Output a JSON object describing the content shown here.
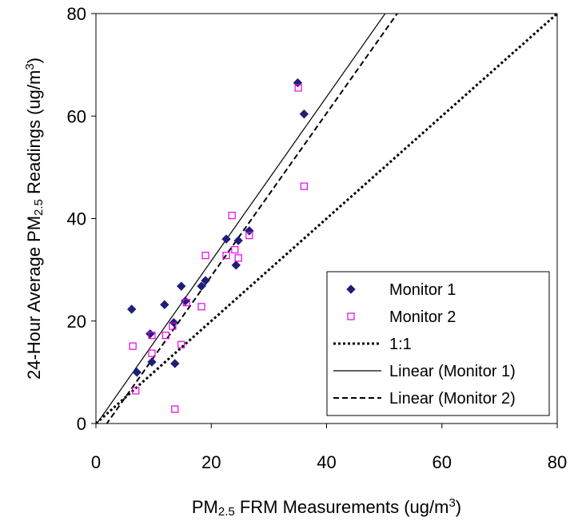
{
  "chart_data": {
    "type": "scatter",
    "x_label": [
      {
        "text": "PM"
      },
      {
        "text": "2.5",
        "sub": true
      },
      {
        "text": " FRM Measurements (ug/m"
      },
      {
        "text": "3",
        "sup": true
      },
      {
        "text": ")"
      }
    ],
    "y_label": [
      {
        "text": "24-Hour Average PM"
      },
      {
        "text": "2.5",
        "sub": true
      },
      {
        "text": " Readings (ug/m"
      },
      {
        "text": "3",
        "sup": true
      },
      {
        "text": ")"
      }
    ],
    "xlim": [
      0,
      80
    ],
    "xticks": [
      0,
      20,
      40,
      60,
      80
    ],
    "ylim": [
      0,
      80
    ],
    "yticks": [
      0,
      20,
      40,
      60,
      80
    ],
    "grid": false,
    "legend": "lower right",
    "series": [
      {
        "name": "Monitor 1",
        "marker": "diamond",
        "color": "#1f1f7a",
        "x": [
          6.2,
          7.1,
          9.4,
          9.7,
          11.9,
          13.5,
          13.7,
          14.8,
          15.5,
          18.3,
          19.0,
          22.6,
          24.3,
          24.7,
          26.6,
          35.0,
          36.1
        ],
        "values": [
          22.3,
          10.0,
          17.5,
          12.0,
          23.2,
          19.7,
          11.7,
          26.8,
          23.9,
          26.8,
          27.9,
          36.0,
          30.9,
          35.7,
          37.6,
          66.5,
          60.4
        ]
      },
      {
        "name": "Monitor 2",
        "marker": "square",
        "color": "#e600e6",
        "x": [
          6.4,
          6.9,
          9.7,
          9.7,
          12.1,
          13.3,
          13.7,
          14.8,
          15.7,
          18.3,
          19.0,
          22.6,
          23.6,
          24.1,
          24.7,
          26.6,
          35.1,
          36.1
        ],
        "values": [
          15.1,
          6.4,
          17.2,
          13.7,
          17.2,
          19.0,
          2.8,
          15.4,
          23.6,
          22.8,
          32.8,
          32.8,
          40.6,
          33.9,
          32.3,
          36.7,
          65.5,
          46.3
        ]
      }
    ],
    "reference_lines": [
      {
        "name": "1:1",
        "x": [
          0,
          80
        ],
        "values": [
          0,
          80
        ],
        "style": "dotted"
      }
    ],
    "trendlines": [
      {
        "name": "Linear (Monitor 1)",
        "source": 0,
        "style": "solid"
      },
      {
        "name": "Linear (Monitor 2)",
        "source": 1,
        "style": "dashed"
      }
    ]
  }
}
